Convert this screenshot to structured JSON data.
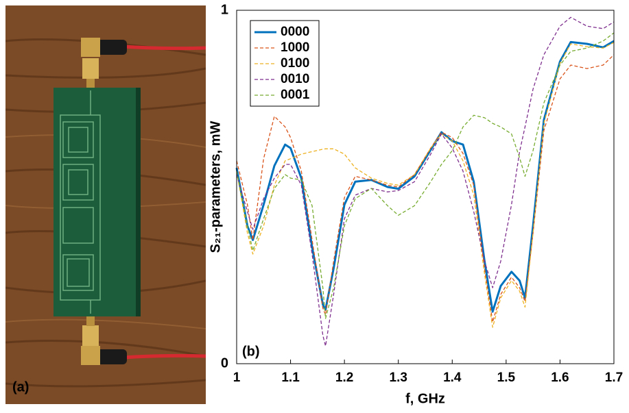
{
  "panel_a": {
    "label": "(a)"
  },
  "chart_data": {
    "type": "line",
    "label": "(b)",
    "xlabel": "f, GHz",
    "ylabel": "S₂₁-parameters, mW",
    "xlim": [
      1,
      1.7
    ],
    "ylim": [
      0,
      1
    ],
    "xticks": [
      1,
      1.1,
      1.2,
      1.3,
      1.4,
      1.5,
      1.6,
      1.7
    ],
    "yticks": [
      0,
      1
    ],
    "legend": "upper left",
    "x": [
      1.0,
      1.02,
      1.03,
      1.05,
      1.07,
      1.09,
      1.1,
      1.12,
      1.14,
      1.16,
      1.165,
      1.18,
      1.2,
      1.22,
      1.25,
      1.28,
      1.3,
      1.33,
      1.36,
      1.38,
      1.4,
      1.42,
      1.44,
      1.46,
      1.475,
      1.49,
      1.51,
      1.525,
      1.535,
      1.55,
      1.57,
      1.6,
      1.62,
      1.65,
      1.68,
      1.7
    ],
    "series": [
      {
        "name": "0000",
        "color": "#0072bd",
        "linestyle": "solid",
        "values": [
          0.554,
          0.39,
          0.35,
          0.45,
          0.56,
          0.62,
          0.61,
          0.525,
          0.33,
          0.167,
          0.153,
          0.27,
          0.45,
          0.515,
          0.52,
          0.5,
          0.495,
          0.53,
          0.605,
          0.655,
          0.63,
          0.62,
          0.515,
          0.29,
          0.147,
          0.22,
          0.26,
          0.235,
          0.186,
          0.39,
          0.69,
          0.855,
          0.91,
          0.905,
          0.895,
          0.913
        ]
      },
      {
        "name": "1000",
        "color": "#d95319",
        "linestyle": "dashed",
        "values": [
          0.574,
          0.45,
          0.35,
          0.58,
          0.7,
          0.67,
          0.64,
          0.545,
          0.35,
          0.157,
          0.138,
          0.29,
          0.47,
          0.53,
          0.52,
          0.505,
          0.5,
          0.535,
          0.61,
          0.655,
          0.64,
          0.595,
          0.505,
          0.27,
          0.118,
          0.196,
          0.245,
          0.215,
          0.176,
          0.37,
          0.66,
          0.806,
          0.845,
          0.835,
          0.845,
          0.874
        ]
      },
      {
        "name": "0100",
        "color": "#edb120",
        "linestyle": "dashed",
        "values": [
          0.545,
          0.37,
          0.31,
          0.39,
          0.505,
          0.574,
          0.58,
          0.593,
          0.6,
          0.607,
          0.608,
          0.608,
          0.593,
          0.554,
          0.525,
          0.51,
          0.505,
          0.535,
          0.61,
          0.65,
          0.63,
          0.574,
          0.477,
          0.254,
          0.103,
          0.186,
          0.235,
          0.205,
          0.16,
          0.37,
          0.68,
          0.85,
          0.905,
          0.897,
          0.893,
          0.909
        ]
      },
      {
        "name": "0010",
        "color": "#7e2f8e",
        "linestyle": "dashed",
        "values": [
          0.535,
          0.43,
          0.38,
          0.467,
          0.525,
          0.564,
          0.564,
          0.505,
          0.31,
          0.08,
          0.05,
          0.196,
          0.41,
          0.477,
          0.496,
          0.486,
          0.49,
          0.515,
          0.593,
          0.65,
          0.61,
          0.545,
          0.43,
          0.29,
          0.215,
          0.29,
          0.45,
          0.6,
          0.67,
          0.777,
          0.874,
          0.955,
          0.98,
          0.955,
          0.948,
          0.967
        ]
      },
      {
        "name": "0001",
        "color": "#77ac30",
        "linestyle": "dashed",
        "values": [
          0.545,
          0.39,
          0.32,
          0.41,
          0.496,
          0.535,
          0.525,
          0.52,
          0.447,
          0.215,
          0.128,
          0.215,
          0.39,
          0.467,
          0.496,
          0.447,
          0.42,
          0.447,
          0.515,
          0.564,
          0.603,
          0.67,
          0.703,
          0.696,
          0.68,
          0.67,
          0.65,
          0.583,
          0.53,
          0.603,
          0.738,
          0.845,
          0.884,
          0.893,
          0.913,
          0.936
        ]
      }
    ]
  }
}
